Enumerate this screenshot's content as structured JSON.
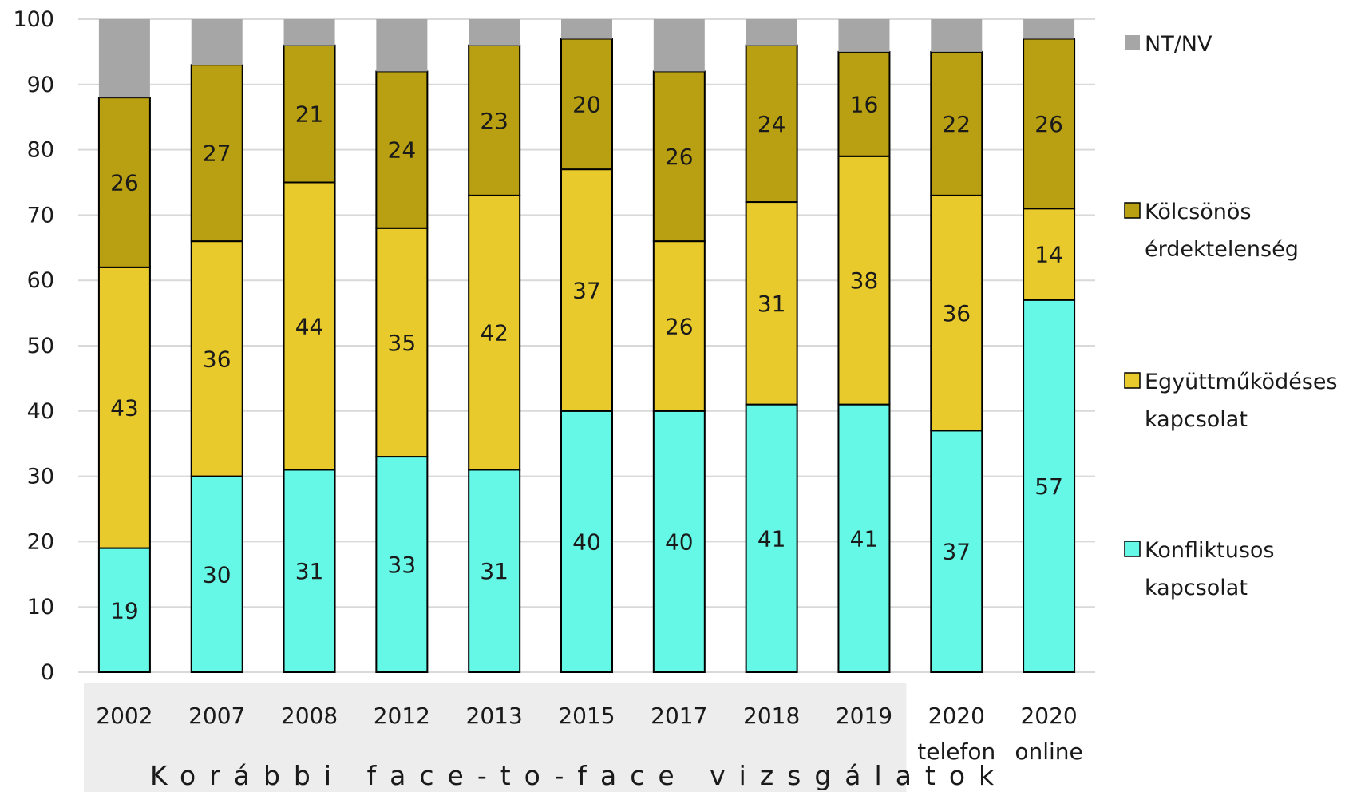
{
  "chart_data": {
    "type": "bar",
    "stacked": true,
    "categories": [
      "2002",
      "2007",
      "2008",
      "2012",
      "2013",
      "2015",
      "2017",
      "2018",
      "2019",
      "2020\ntelefon",
      "2020\nonline"
    ],
    "group_label": "Korábbi face-to-face vizsgálatok",
    "grouped_category_count": 9,
    "series": [
      {
        "name": "Konfliktusos kapcsolat",
        "color": "#66f8e6",
        "values": [
          19,
          30,
          31,
          33,
          31,
          40,
          40,
          41,
          41,
          37,
          57
        ],
        "labels": [
          "19",
          "30",
          "31",
          "33",
          "31",
          "40",
          "40",
          "41",
          "41",
          "37",
          "57"
        ]
      },
      {
        "name": "Együttműködéses kapcsolat",
        "color": "#e8ca2c",
        "values": [
          43,
          36,
          44,
          35,
          42,
          37,
          26,
          31,
          38,
          36,
          14
        ],
        "labels": [
          "43",
          "36",
          "44",
          "35",
          "42",
          "37",
          "26",
          "31",
          "38",
          "36",
          "14"
        ]
      },
      {
        "name": "Kölcsönös érdektelenség",
        "color": "#b9a012",
        "values": [
          26,
          27,
          21,
          24,
          23,
          20,
          26,
          24,
          16,
          22,
          26
        ],
        "labels": [
          "26",
          "27",
          "21",
          "24",
          "23",
          "20",
          "26",
          "24",
          "16",
          "22",
          "26"
        ]
      },
      {
        "name": "NT/NV",
        "color": "#a6a6a6",
        "values": [
          12,
          7,
          4,
          8,
          4,
          3,
          8,
          4,
          5,
          5,
          3
        ],
        "labels": []
      }
    ],
    "legend": [
      {
        "label": "NT/NV",
        "color": "#a6a6a6"
      },
      {
        "label": "Kölcsönös\nérdektelenség",
        "color": "#b9a012"
      },
      {
        "label": "Együttműködéses\nkapcsolat",
        "color": "#e8ca2c"
      },
      {
        "label": "Konfliktusos\nkapcsolat",
        "color": "#66f8e6"
      }
    ],
    "ylim": [
      0,
      100
    ],
    "yticks": [
      0,
      10,
      20,
      30,
      40,
      50,
      60,
      70,
      80,
      90,
      100
    ],
    "grid": true,
    "legend_position": "right"
  }
}
